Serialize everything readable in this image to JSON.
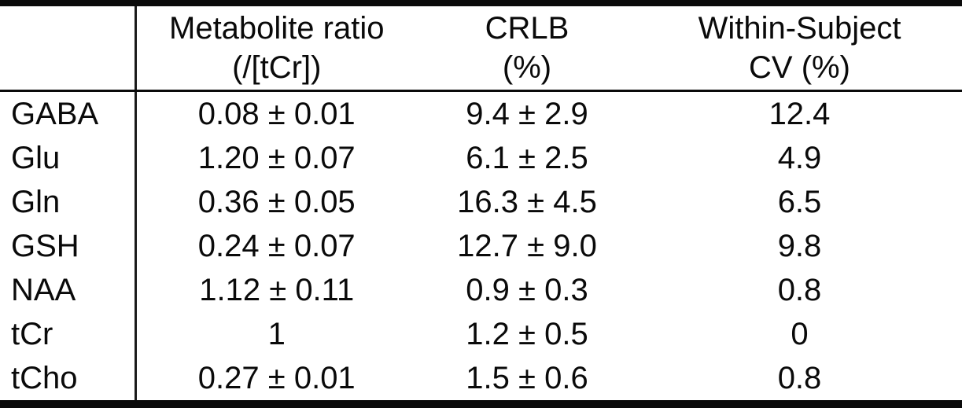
{
  "table": {
    "header": {
      "metabolite": "",
      "ratio_line1": "Metabolite ratio",
      "ratio_line2": "(/[tCr])",
      "crlb_line1": "CRLB",
      "crlb_line2": "(%)",
      "cv_line1": "Within-Subject",
      "cv_line2": "CV (%)"
    },
    "rows": [
      {
        "name": "GABA",
        "ratio": "0.08 ± 0.01",
        "crlb": "9.4 ± 2.9",
        "cv": "12.4"
      },
      {
        "name": "Glu",
        "ratio": "1.20 ± 0.07",
        "crlb": "6.1 ± 2.5",
        "cv": "4.9"
      },
      {
        "name": "Gln",
        "ratio": "0.36 ± 0.05",
        "crlb": "16.3 ± 4.5",
        "cv": "6.5"
      },
      {
        "name": "GSH",
        "ratio": "0.24 ± 0.07",
        "crlb": "12.7 ± 9.0",
        "cv": "9.8"
      },
      {
        "name": "NAA",
        "ratio": "1.12 ± 0.11",
        "crlb": "0.9 ± 0.3",
        "cv": "0.8"
      },
      {
        "name": "tCr",
        "ratio": "1",
        "crlb": "1.2 ± 0.5",
        "cv": "0"
      },
      {
        "name": "tCho",
        "ratio": "0.27 ± 0.01",
        "crlb": "1.5 ± 0.6",
        "cv": "0.8"
      }
    ]
  },
  "colors": {
    "text": "#0a0a0a",
    "border": "#0a0a0a",
    "background": "#ffffff"
  },
  "chart_data": {
    "type": "table",
    "title": "",
    "columns": [
      "",
      "Metabolite ratio (/[tCr])",
      "CRLB (%)",
      "Within-Subject CV (%)"
    ],
    "rows": [
      [
        "GABA",
        "0.08 ± 0.01",
        "9.4 ± 2.9",
        "12.4"
      ],
      [
        "Glu",
        "1.20 ± 0.07",
        "6.1 ± 2.5",
        "4.9"
      ],
      [
        "Gln",
        "0.36 ± 0.05",
        "16.3 ± 4.5",
        "6.5"
      ],
      [
        "GSH",
        "0.24 ± 0.07",
        "12.7 ± 9.0",
        "9.8"
      ],
      [
        "NAA",
        "1.12 ± 0.11",
        "0.9 ± 0.3",
        "0.8"
      ],
      [
        "tCr",
        "1",
        "1.2 ± 0.5",
        "0"
      ],
      [
        "tCho",
        "0.27 ± 0.01",
        "1.5 ± 0.6",
        "0.8"
      ]
    ]
  }
}
